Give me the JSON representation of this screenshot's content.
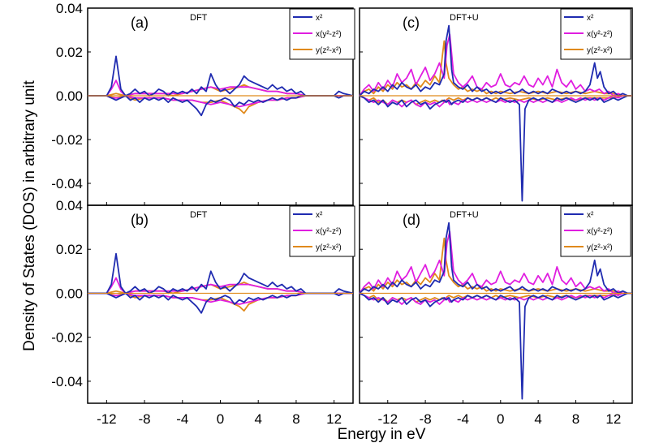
{
  "figure": {
    "ylabel": "Density of States (DOS) in arbitrary unit",
    "xlabel": "Energy in eV",
    "x_ticks": [
      "-12",
      "-8",
      "-4",
      "0",
      "4",
      "8",
      "12"
    ],
    "y_ticks": [
      "0.04",
      "0.02",
      "0.00",
      "-0.02",
      "-0.04"
    ]
  },
  "legend": {
    "x2": "x²",
    "xy": "x(y²-z²)",
    "yz": "y(z²-x²)"
  },
  "colors": {
    "x2": "#1f2bb0",
    "xy": "#e01ee0",
    "yz": "#e08a1c"
  },
  "chart_data": [
    {
      "type": "line",
      "panel": "(a)",
      "title": "DFT",
      "xlim": [
        -14,
        14
      ],
      "ylim": [
        -0.05,
        0.04
      ],
      "series": [
        {
          "name": "x²",
          "key": "x2",
          "x": [
            -14,
            -12,
            -11.5,
            -11,
            -10.5,
            -10,
            -9.5,
            -9,
            -8.5,
            -8,
            -7.5,
            -7,
            -6.5,
            -6,
            -5.5,
            -5,
            -4.5,
            -4,
            -3.5,
            -3,
            -2.5,
            -2,
            -1.5,
            -1,
            -0.5,
            0,
            0.5,
            1,
            1.5,
            2,
            2.5,
            3,
            3.5,
            4,
            4.5,
            5,
            5.5,
            6,
            6.5,
            7,
            7.5,
            8,
            8.5,
            9,
            10,
            11,
            12,
            12.5,
            13,
            14
          ],
          "y_up": [
            0,
            0,
            0.004,
            0.018,
            0.003,
            0,
            0.001,
            0.003,
            0.001,
            0.002,
            0,
            0.001,
            0.003,
            0.002,
            0,
            0.002,
            0.001,
            0.002,
            0.001,
            0.003,
            0.001,
            0.004,
            0.002,
            0.01,
            0.005,
            0.002,
            0.003,
            0.001,
            0.003,
            0.005,
            0.009,
            0.007,
            0.006,
            0.005,
            0.004,
            0.003,
            0.005,
            0.003,
            0.004,
            0.002,
            0.003,
            0.001,
            0.002,
            0,
            0,
            0,
            0,
            0.002,
            0.001,
            0
          ],
          "y_dn": [
            0,
            0,
            -0.001,
            -0.002,
            -0.001,
            0,
            -0.002,
            -0.001,
            -0.003,
            -0.001,
            -0.002,
            -0.001,
            -0.002,
            -0.001,
            -0.003,
            -0.001,
            -0.002,
            -0.003,
            -0.002,
            -0.004,
            -0.006,
            -0.009,
            -0.004,
            -0.002,
            -0.003,
            -0.002,
            -0.001,
            -0.002,
            -0.005,
            -0.003,
            -0.004,
            -0.002,
            -0.003,
            -0.002,
            -0.003,
            -0.002,
            -0.001,
            -0.002,
            -0.001,
            -0.002,
            -0.001,
            -0.001,
            0,
            0,
            0,
            0,
            0,
            -0.001,
            0,
            0
          ]
        },
        {
          "name": "x(y²-z²)",
          "key": "xy",
          "x": [
            -14,
            -12,
            -11.5,
            -11,
            -10.5,
            -10,
            -9,
            -8,
            -7,
            -6,
            -5,
            -4,
            -3,
            -2,
            -1,
            0,
            1,
            2,
            3,
            4,
            5,
            6,
            7,
            8,
            9,
            11,
            14
          ],
          "y_up": [
            0,
            0,
            0.003,
            0.007,
            0.002,
            0,
            0.001,
            0.001,
            0.001,
            0.001,
            0.001,
            0.001,
            0.002,
            0.003,
            0.004,
            0.003,
            0.004,
            0.004,
            0.004,
            0.003,
            0.002,
            0.002,
            0.001,
            0.001,
            0,
            0,
            0
          ],
          "y_dn": [
            0,
            0,
            -0.001,
            -0.001,
            -0.001,
            0,
            -0.001,
            -0.001,
            -0.001,
            -0.001,
            -0.002,
            -0.002,
            -0.002,
            -0.003,
            -0.004,
            -0.003,
            -0.004,
            -0.005,
            -0.004,
            -0.003,
            -0.002,
            -0.002,
            -0.001,
            -0.001,
            0,
            0,
            0
          ]
        },
        {
          "name": "y(z²-x²)",
          "key": "yz",
          "x": [
            -14,
            -12,
            -11,
            -10,
            -9,
            -8,
            -7,
            -6,
            -5,
            -4,
            -3,
            -2,
            -1,
            0,
            1,
            2,
            2.5,
            3,
            4,
            5,
            6,
            7,
            8,
            9,
            11,
            14
          ],
          "y_up": [
            0,
            0,
            0.001,
            0,
            0.001,
            0.001,
            0.001,
            0.001,
            0,
            0.001,
            0.002,
            0.003,
            0.004,
            0.002,
            0.003,
            0.004,
            0.005,
            0.004,
            0.003,
            0.002,
            0.002,
            0.001,
            0.001,
            0,
            0,
            0
          ],
          "y_dn": [
            0,
            0,
            -0.001,
            0,
            -0.002,
            -0.001,
            -0.001,
            -0.001,
            -0.002,
            -0.002,
            -0.002,
            -0.003,
            -0.003,
            -0.002,
            -0.004,
            -0.006,
            -0.008,
            -0.005,
            -0.003,
            -0.002,
            -0.002,
            -0.001,
            -0.001,
            0,
            0,
            0
          ]
        }
      ]
    },
    {
      "type": "line",
      "panel": "(c)",
      "title": "DFT+U",
      "xlim": [
        -15,
        14
      ],
      "ylim": [
        -0.05,
        0.04
      ],
      "series": [
        {
          "name": "x²",
          "key": "x2",
          "x": [
            -15,
            -14.5,
            -14,
            -13.5,
            -13,
            -12.5,
            -12,
            -11.5,
            -11,
            -10.5,
            -10,
            -9.5,
            -9,
            -8.5,
            -8,
            -7.5,
            -7,
            -6.5,
            -6,
            -5.8,
            -5.5,
            -5.2,
            -5,
            -4.5,
            -4,
            -3.5,
            -3,
            -2.5,
            -2,
            -1.5,
            -1,
            -0.5,
            0,
            0.5,
            1,
            1.5,
            2,
            2.3,
            2.6,
            3,
            3.5,
            4,
            4.5,
            5,
            5.5,
            6,
            6.5,
            7,
            7.5,
            8,
            8.5,
            9,
            9.5,
            10,
            10.3,
            10.6,
            11,
            11.5,
            12,
            12.5,
            13,
            13.5,
            14
          ],
          "y_up": [
            0,
            0.002,
            0.001,
            0.003,
            0.002,
            0.004,
            0.002,
            0.005,
            0.003,
            0.006,
            0.004,
            0.003,
            0.005,
            0.002,
            0.004,
            0.003,
            0.006,
            0.005,
            0.01,
            0.025,
            0.032,
            0.012,
            0.006,
            0.004,
            0.003,
            0.005,
            0.002,
            0.004,
            0.002,
            0.003,
            0.001,
            0.002,
            0.001,
            0.002,
            0.003,
            0.001,
            0.002,
            0.003,
            0.002,
            0.001,
            0.002,
            0.001,
            0.002,
            0.001,
            0.003,
            0.002,
            0.001,
            0.002,
            0.001,
            0.002,
            0.001,
            0.002,
            0.005,
            0.015,
            0.008,
            0.011,
            0.004,
            0.001,
            0.002,
            0,
            0.001,
            0,
            0
          ],
          "y_dn": [
            0,
            -0.001,
            -0.003,
            -0.002,
            -0.004,
            -0.002,
            -0.005,
            -0.003,
            -0.004,
            -0.002,
            -0.005,
            -0.003,
            -0.002,
            -0.004,
            -0.003,
            -0.006,
            -0.004,
            -0.003,
            -0.002,
            -0.003,
            -0.002,
            -0.004,
            -0.003,
            -0.002,
            -0.003,
            -0.001,
            -0.002,
            -0.001,
            -0.002,
            -0.001,
            -0.002,
            -0.003,
            -0.001,
            -0.002,
            -0.003,
            -0.002,
            -0.004,
            -0.048,
            -0.006,
            -0.002,
            -0.001,
            -0.002,
            -0.001,
            -0.002,
            -0.003,
            -0.001,
            -0.002,
            -0.001,
            -0.002,
            -0.003,
            -0.002,
            -0.001,
            -0.002,
            -0.001,
            -0.002,
            -0.001,
            -0.003,
            -0.002,
            -0.001,
            -0.002,
            -0.001,
            0,
            0
          ]
        },
        {
          "name": "x(y²-z²)",
          "key": "xy",
          "x": [
            -15,
            -14.5,
            -14,
            -13.5,
            -13,
            -12.5,
            -12,
            -11.5,
            -11,
            -10.5,
            -10,
            -9.5,
            -9,
            -8.5,
            -8,
            -7.5,
            -7,
            -6.5,
            -6,
            -5.7,
            -5.4,
            -5,
            -4.5,
            -4,
            -3.5,
            -3,
            -2.5,
            -2,
            -1.5,
            -1,
            -0.5,
            0,
            0.5,
            1,
            1.5,
            2,
            2.5,
            3,
            3.5,
            4,
            4.5,
            5,
            5.5,
            6,
            6.5,
            7,
            7.5,
            8,
            8.5,
            9,
            9.5,
            10,
            10.5,
            11,
            11.5,
            12,
            12.5,
            13,
            14
          ],
          "y_up": [
            0,
            0.003,
            0.005,
            0.002,
            0.006,
            0.003,
            0.007,
            0.004,
            0.01,
            0.006,
            0.008,
            0.012,
            0.005,
            0.009,
            0.013,
            0.007,
            0.01,
            0.015,
            0.008,
            0.023,
            0.028,
            0.01,
            0.006,
            0.004,
            0.006,
            0.009,
            0.004,
            0.003,
            0.006,
            0.004,
            0.005,
            0.01,
            0.005,
            0.004,
            0.006,
            0.005,
            0.009,
            0.005,
            0.004,
            0.008,
            0.005,
            0.009,
            0.004,
            0.012,
            0.006,
            0.004,
            0.007,
            0.003,
            0.005,
            0.002,
            0.003,
            0.002,
            0.003,
            0.001,
            0.002,
            0,
            0.001,
            0,
            0
          ],
          "y_dn": [
            0,
            -0.001,
            -0.002,
            -0.003,
            -0.002,
            -0.003,
            -0.004,
            -0.002,
            -0.003,
            -0.005,
            -0.003,
            -0.002,
            -0.004,
            -0.005,
            -0.003,
            -0.004,
            -0.003,
            -0.005,
            -0.003,
            -0.002,
            -0.004,
            -0.003,
            -0.004,
            -0.002,
            -0.003,
            -0.002,
            -0.003,
            -0.002,
            -0.003,
            -0.002,
            -0.003,
            -0.002,
            -0.003,
            -0.002,
            -0.003,
            -0.002,
            -0.003,
            -0.002,
            -0.003,
            -0.002,
            -0.003,
            -0.002,
            -0.003,
            -0.002,
            -0.003,
            -0.002,
            -0.001,
            -0.002,
            -0.001,
            -0.002,
            -0.001,
            -0.002,
            -0.001,
            -0.002,
            -0.001,
            0,
            -0.001,
            0,
            0
          ]
        },
        {
          "name": "y(z²-x²)",
          "key": "yz",
          "x": [
            -15,
            -14.5,
            -14,
            -13.5,
            -13,
            -12.5,
            -12,
            -11.5,
            -11,
            -10.5,
            -10,
            -9.5,
            -9,
            -8.5,
            -8,
            -7.5,
            -7,
            -6.5,
            -6.2,
            -6,
            -5.8,
            -5.5,
            -5,
            -4.5,
            -4,
            -3.5,
            -3,
            -2.5,
            -2,
            -1.5,
            -1,
            -0.5,
            0,
            1,
            2,
            3,
            4,
            5,
            6,
            7,
            8,
            9,
            10,
            11,
            12,
            13,
            14
          ],
          "y_up": [
            0,
            0.002,
            0.003,
            0.001,
            0.004,
            0.002,
            0.005,
            0.003,
            0.006,
            0.004,
            0.005,
            0.003,
            0.006,
            0.004,
            0.007,
            0.005,
            0.009,
            0.006,
            0.018,
            0.025,
            0.015,
            0.008,
            0.005,
            0.003,
            0.004,
            0.002,
            0.003,
            0.002,
            0.003,
            0.001,
            0.002,
            0.001,
            0.002,
            0.001,
            0.002,
            0.001,
            0.002,
            0.001,
            0.002,
            0.001,
            0.002,
            0.001,
            0.002,
            0.001,
            0.001,
            0,
            0
          ],
          "y_dn": [
            0,
            -0.001,
            -0.002,
            -0.001,
            -0.003,
            -0.002,
            -0.004,
            -0.002,
            -0.003,
            -0.002,
            -0.003,
            -0.002,
            -0.004,
            -0.003,
            -0.002,
            -0.003,
            -0.002,
            -0.003,
            -0.002,
            -0.003,
            -0.002,
            -0.001,
            -0.002,
            -0.001,
            -0.002,
            -0.001,
            -0.002,
            -0.001,
            -0.002,
            -0.001,
            -0.002,
            -0.001,
            -0.002,
            -0.001,
            -0.002,
            -0.001,
            -0.002,
            -0.001,
            -0.002,
            -0.001,
            -0.002,
            -0.001,
            -0.001,
            -0.001,
            -0.001,
            0,
            0
          ]
        }
      ]
    },
    {
      "type": "line",
      "panel": "(b)",
      "title": "DFT",
      "xlim": [
        -14,
        14
      ],
      "ylim": [
        -0.05,
        0.04
      ],
      "same_as": 0
    },
    {
      "type": "line",
      "panel": "(d)",
      "title": "DFT+U",
      "xlim": [
        -15,
        14
      ],
      "ylim": [
        -0.05,
        0.04
      ],
      "same_as": 1
    }
  ]
}
